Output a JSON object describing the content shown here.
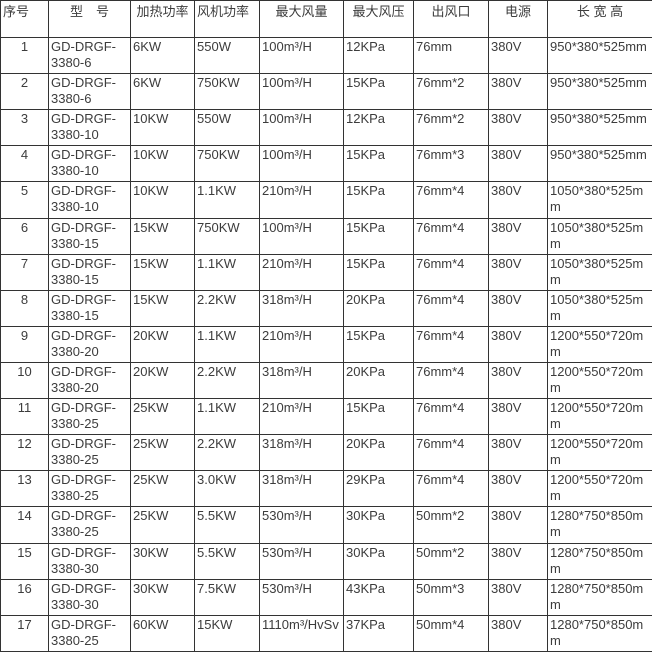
{
  "table": {
    "headers": [
      "序号",
      "型　号",
      "加热功率",
      "风机功率",
      "最大风量",
      "最大风压",
      "出风口",
      "电源",
      "长 宽 高"
    ],
    "rows": [
      [
        "1",
        "GD-DRGF-3380-6",
        "6KW",
        "550W",
        "100m³/H",
        "12KPa",
        "76mm",
        "380V",
        "950*380*525mm"
      ],
      [
        "2",
        "GD-DRGF-3380-6",
        "6KW",
        "750KW",
        "100m³/H",
        "15KPa",
        "76mm*2",
        "380V",
        "950*380*525mm"
      ],
      [
        "3",
        "GD-DRGF-3380-10",
        "10KW",
        "550W",
        "100m³/H",
        "12KPa",
        "76mm*2",
        "380V",
        "950*380*525mm"
      ],
      [
        "4",
        "GD-DRGF-3380-10",
        "10KW",
        "750KW",
        "100m³/H",
        "15KPa",
        "76mm*3",
        "380V",
        "950*380*525mm"
      ],
      [
        "5",
        "GD-DRGF-3380-10",
        "10KW",
        "1.1KW",
        "210m³/H",
        "15KPa",
        "76mm*4",
        "380V",
        "1050*380*525mm"
      ],
      [
        "6",
        "GD-DRGF-3380-15",
        "15KW",
        "750KW",
        "100m³/H",
        "15KPa",
        "76mm*4",
        "380V",
        "1050*380*525mm"
      ],
      [
        "7",
        "GD-DRGF-3380-15",
        "15KW",
        "1.1KW",
        "210m³/H",
        "15KPa",
        "76mm*4",
        "380V",
        "1050*380*525mm"
      ],
      [
        "8",
        "GD-DRGF-3380-15",
        "15KW",
        "2.2KW",
        "318m³/H",
        "20KPa",
        "76mm*4",
        "380V",
        "1050*380*525mm"
      ],
      [
        "9",
        "GD-DRGF-3380-20",
        "20KW",
        "1.1KW",
        "210m³/H",
        "15KPa",
        "76mm*4",
        "380V",
        "1200*550*720mm"
      ],
      [
        "10",
        "GD-DRGF-3380-20",
        "20KW",
        "2.2KW",
        "318m³/H",
        "20KPa",
        "76mm*4",
        "380V",
        "1200*550*720mm"
      ],
      [
        "11",
        "GD-DRGF-3380-25",
        "25KW",
        "1.1KW",
        "210m³/H",
        "15KPa",
        "76mm*4",
        "380V",
        "1200*550*720mm"
      ],
      [
        "12",
        "GD-DRGF-3380-25",
        "25KW",
        "2.2KW",
        "318m³/H",
        "20KPa",
        "76mm*4",
        "380V",
        "1200*550*720mm"
      ],
      [
        "13",
        "GD-DRGF-3380-25",
        "25KW",
        "3.0KW",
        "318m³/H",
        "29KPa",
        "76mm*4",
        "380V",
        "1200*550*720mm"
      ],
      [
        "14",
        "GD-DRGF-3380-25",
        "25KW",
        "5.5KW",
        "530m³/H",
        "30KPa",
        "50mm*2",
        "380V",
        "1280*750*850mm"
      ],
      [
        "15",
        "GD-DRGF-3380-30",
        "30KW",
        "5.5KW",
        "530m³/H",
        "30KPa",
        "50mm*2",
        "380V",
        "1280*750*850mm"
      ],
      [
        "16",
        "GD-DRGF-3380-30",
        "30KW",
        "7.5KW",
        "530m³/H",
        "43KPa",
        "50mm*3",
        "380V",
        "1280*750*850mm"
      ],
      [
        "17",
        "GD-DRGF-3380-25",
        "60KW",
        "15KW",
        "1110m³/HvSv",
        "37KPa",
        "50mm*4",
        "380V",
        "1280*750*850mm"
      ]
    ]
  },
  "colors": {
    "text": "#3c3c3c",
    "border": "#333333",
    "background": "#ffffff"
  }
}
